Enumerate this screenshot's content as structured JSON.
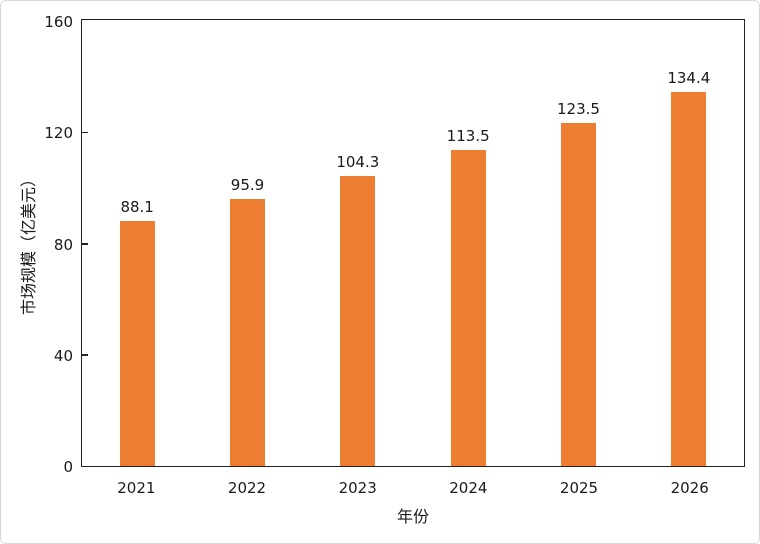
{
  "chart_data": {
    "type": "bar",
    "title": "",
    "categories": [
      "2021",
      "2022",
      "2023",
      "2024",
      "2025",
      "2026"
    ],
    "values": [
      88.1,
      95.9,
      104.3,
      113.5,
      123.5,
      134.4
    ],
    "value_labels": [
      "88.1",
      "95.9",
      "104.3",
      "113.5",
      "123.5",
      "134.4"
    ],
    "xlabel": "年份",
    "ylabel": "市场规模（亿美元）",
    "ylim": [
      0,
      160
    ],
    "yticks": [
      0,
      40,
      80,
      120,
      160
    ],
    "ytick_marks": [
      40,
      80,
      120
    ],
    "bar_color": "#ED7D31",
    "grid": false,
    "legend": "none"
  }
}
